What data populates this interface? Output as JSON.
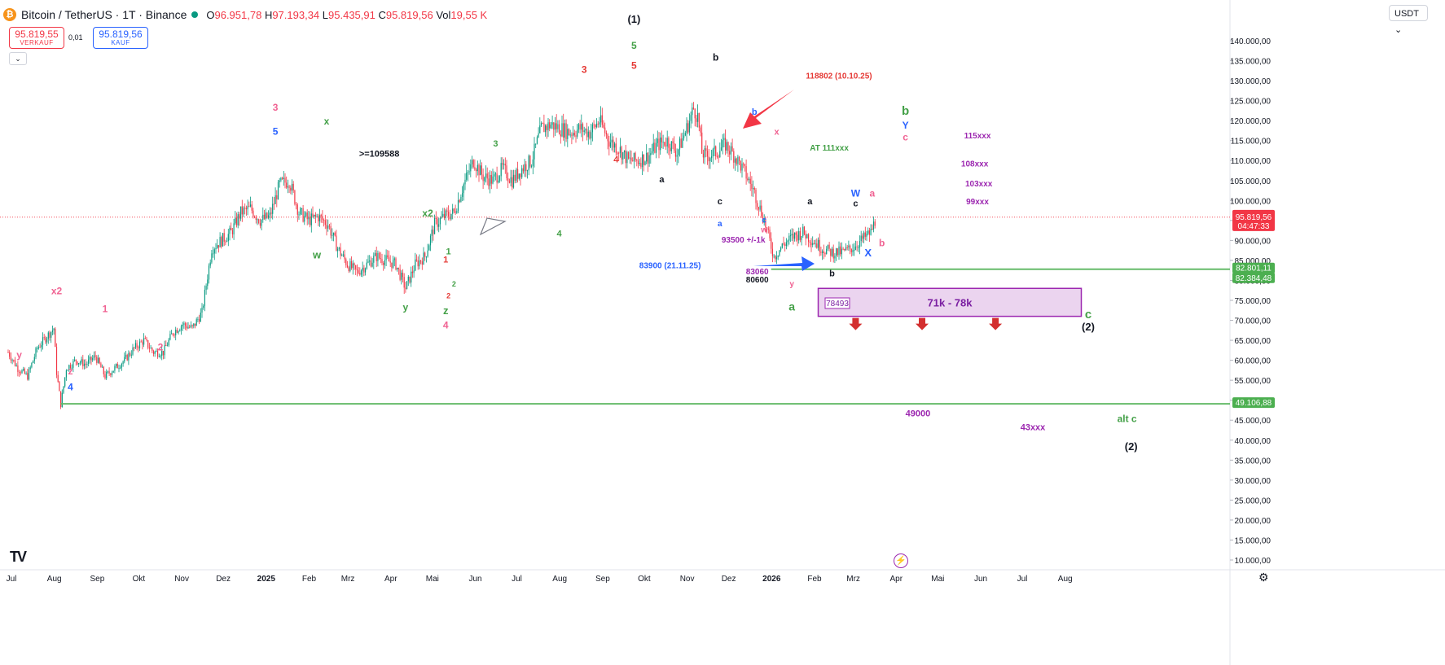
{
  "header": {
    "symbol": "Bitcoin / TetherUS · 1T · Binance",
    "coin_glyph": "₿",
    "ohlc": [
      {
        "k": "O",
        "v": "96.951,78"
      },
      {
        "k": "H",
        "v": "97.193,34"
      },
      {
        "k": "L",
        "v": "95.435,91"
      },
      {
        "k": "C",
        "v": "95.819,56"
      },
      {
        "k": "Vol",
        "v": "19,55 K"
      }
    ]
  },
  "trade": {
    "sell_price": "95.819,55",
    "sell_label": "VERKAUF",
    "spread": "0,01",
    "buy_price": "95.819,56",
    "buy_label": "KAUF"
  },
  "currency_button": "USDT",
  "colors": {
    "up": "#089981",
    "down": "#f23645",
    "green_line": "#66bb6a",
    "purple": "#9c27b0"
  },
  "chart_data": {
    "type": "candlestick",
    "y_ticks": [
      "10.000,00",
      "15.000,00",
      "20.000,00",
      "25.000,00",
      "30.000,00",
      "35.000,00",
      "40.000,00",
      "45.000,00",
      "50.000,00",
      "55.000,00",
      "60.000,00",
      "65.000,00",
      "70.000,00",
      "75.000,00",
      "80.000,00",
      "85.000,00",
      "90.000,00",
      "95.000,00",
      "100.000,00",
      "105.000,00",
      "110.000,00",
      "115.000,00",
      "120.000,00",
      "125.000,00",
      "130.000,00",
      "135.000,00",
      "140.000,00"
    ],
    "x_ticks": [
      "Jul",
      "Aug",
      "Sep",
      "Okt",
      "Nov",
      "Dez",
      "2025",
      "Feb",
      "Mrz",
      "Apr",
      "Mai",
      "Jun",
      "Jul",
      "Aug",
      "Sep",
      "Okt",
      "Nov",
      "Dez",
      "2026",
      "Feb",
      "Mrz",
      "Apr",
      "Mai",
      "Jun",
      "Jul",
      "Aug"
    ],
    "bold_x_ticks": [
      "2025",
      "2026"
    ],
    "series": [
      [
        0,
        62000
      ],
      [
        7,
        58000
      ],
      [
        14,
        56000
      ],
      [
        21,
        63000
      ],
      [
        28,
        66000
      ],
      [
        33,
        68000
      ],
      [
        35,
        57000
      ],
      [
        38,
        49000
      ],
      [
        42,
        58000
      ],
      [
        49,
        60000
      ],
      [
        56,
        59000
      ],
      [
        63,
        61000
      ],
      [
        70,
        56000
      ],
      [
        77,
        58000
      ],
      [
        84,
        60000
      ],
      [
        91,
        63000
      ],
      [
        98,
        65000
      ],
      [
        105,
        62000
      ],
      [
        112,
        62000
      ],
      [
        119,
        67000
      ],
      [
        126,
        69000
      ],
      [
        133,
        68000
      ],
      [
        140,
        72000
      ],
      [
        147,
        88000
      ],
      [
        154,
        90000
      ],
      [
        161,
        92000
      ],
      [
        168,
        97000
      ],
      [
        175,
        98000
      ],
      [
        182,
        95000
      ],
      [
        189,
        96000
      ],
      [
        196,
        104000
      ],
      [
        203,
        105000
      ],
      [
        210,
        97000
      ],
      [
        217,
        95000
      ],
      [
        224,
        96000
      ],
      [
        231,
        94000
      ],
      [
        238,
        88000
      ],
      [
        245,
        84000
      ],
      [
        252,
        82000
      ],
      [
        259,
        84000
      ],
      [
        266,
        86000
      ],
      [
        273,
        85000
      ],
      [
        280,
        84000
      ],
      [
        287,
        78000
      ],
      [
        294,
        84000
      ],
      [
        301,
        86000
      ],
      [
        308,
        94000
      ],
      [
        315,
        96000
      ],
      [
        322,
        97000
      ],
      [
        329,
        104000
      ],
      [
        336,
        110000
      ],
      [
        343,
        106000
      ],
      [
        350,
        105000
      ],
      [
        357,
        108000
      ],
      [
        364,
        105000
      ],
      [
        371,
        108000
      ],
      [
        378,
        110000
      ],
      [
        385,
        118000
      ],
      [
        392,
        119000
      ],
      [
        399,
        118000
      ],
      [
        406,
        117000
      ],
      [
        413,
        118000
      ],
      [
        420,
        117000
      ],
      [
        427,
        120000
      ],
      [
        434,
        115000
      ],
      [
        441,
        113000
      ],
      [
        448,
        110000
      ],
      [
        455,
        110000
      ],
      [
        462,
        111000
      ],
      [
        469,
        114000
      ],
      [
        476,
        115000
      ],
      [
        483,
        112000
      ],
      [
        490,
        118000
      ],
      [
        495,
        123000
      ],
      [
        498,
        121000
      ],
      [
        501,
        112000
      ],
      [
        504,
        111000
      ],
      [
        511,
        112000
      ],
      [
        518,
        114000
      ],
      [
        525,
        111000
      ],
      [
        532,
        107000
      ],
      [
        539,
        102000
      ],
      [
        546,
        95000
      ],
      [
        553,
        86000
      ],
      [
        560,
        89000
      ],
      [
        567,
        91000
      ],
      [
        574,
        92000
      ],
      [
        581,
        90000
      ],
      [
        588,
        88000
      ],
      [
        595,
        87000
      ],
      [
        602,
        87000
      ],
      [
        609,
        88000
      ],
      [
        616,
        90000
      ],
      [
        623,
        92000
      ],
      [
        627,
        95819
      ]
    ],
    "last_price": "95.819,56",
    "countdown": "04:47:33",
    "h_levels": [
      {
        "price": 82801.11,
        "label": "82.801,11",
        "from_day": 551
      },
      {
        "price": 82384.48,
        "label": "82.384,48",
        "from_day": 551
      },
      {
        "price": 49106.88,
        "label": "49.106,88",
        "from_day": 38
      }
    ],
    "zone": {
      "label": "71k - 78k",
      "from_day": 585,
      "to_day": 775,
      "top": 78000,
      "bottom": 71000,
      "arrows_days": [
        612,
        660,
        713
      ]
    },
    "annotations": [
      {
        "t": "(1)",
        "d": 452,
        "p": 144500,
        "c": "#131722",
        "b": 1,
        "s": 13
      },
      {
        "t": "5",
        "d": 452,
        "p": 138000,
        "c": "#43a047",
        "b": 1,
        "s": 12
      },
      {
        "t": "5",
        "d": 452,
        "p": 133000,
        "c": "#e53935",
        "b": 1,
        "s": 12
      },
      {
        "t": "3",
        "d": 416,
        "p": 132000,
        "c": "#e53935",
        "b": 1,
        "s": 12
      },
      {
        "t": "b",
        "d": 511,
        "p": 135000,
        "c": "#131722",
        "b": 1,
        "s": 12
      },
      {
        "t": "118802 (10.10.25)",
        "d": 600,
        "p": 130500,
        "c": "#e53935",
        "b": 1,
        "s": 10
      },
      {
        "t": "3",
        "d": 193,
        "p": 122500,
        "c": "#f06292",
        "b": 1,
        "s": 12
      },
      {
        "t": "5",
        "d": 193,
        "p": 116500,
        "c": "#2962ff",
        "b": 1,
        "s": 12
      },
      {
        "t": "x",
        "d": 230,
        "p": 119000,
        "c": "#43a047",
        "b": 1,
        "s": 12
      },
      {
        "t": ">=109588",
        "d": 268,
        "p": 111000,
        "c": "#131722",
        "b": 1,
        "s": 11
      },
      {
        "t": "3",
        "d": 352,
        "p": 113500,
        "c": "#43a047",
        "b": 1,
        "s": 11
      },
      {
        "t": "4",
        "d": 439,
        "p": 109500,
        "c": "#e53935",
        "b": 1,
        "s": 11
      },
      {
        "t": "a",
        "d": 472,
        "p": 104500,
        "c": "#131722",
        "b": 1,
        "s": 11
      },
      {
        "t": "b",
        "d": 539,
        "p": 121500,
        "c": "#2962ff",
        "b": 1,
        "s": 11
      },
      {
        "t": "x",
        "d": 555,
        "p": 116500,
        "c": "#f06292",
        "b": 1,
        "s": 11
      },
      {
        "t": "b",
        "d": 648,
        "p": 121500,
        "c": "#43a047",
        "b": 1,
        "s": 15
      },
      {
        "t": "Y",
        "d": 648,
        "p": 118000,
        "c": "#2962ff",
        "b": 1,
        "s": 12
      },
      {
        "t": "c",
        "d": 648,
        "p": 115000,
        "c": "#f06292",
        "b": 1,
        "s": 12
      },
      {
        "t": "AT 111xxx",
        "d": 593,
        "p": 112500,
        "c": "#43a047",
        "b": 1,
        "s": 10
      },
      {
        "t": "115xxx",
        "d": 700,
        "p": 115500,
        "c": "#9c27b0",
        "b": 1,
        "s": 10
      },
      {
        "t": "108xxx",
        "d": 698,
        "p": 108500,
        "c": "#9c27b0",
        "b": 1,
        "s": 10
      },
      {
        "t": "103xxx",
        "d": 701,
        "p": 103500,
        "c": "#9c27b0",
        "b": 1,
        "s": 10
      },
      {
        "t": "99xxx",
        "d": 700,
        "p": 99000,
        "c": "#9c27b0",
        "b": 1,
        "s": 10
      },
      {
        "t": "W",
        "d": 612,
        "p": 101000,
        "c": "#2962ff",
        "b": 1,
        "s": 12
      },
      {
        "t": "a",
        "d": 624,
        "p": 101000,
        "c": "#f06292",
        "b": 1,
        "s": 12
      },
      {
        "t": "c",
        "d": 514,
        "p": 99000,
        "c": "#131722",
        "b": 1,
        "s": 11
      },
      {
        "t": "a",
        "d": 579,
        "p": 99000,
        "c": "#131722",
        "b": 1,
        "s": 11
      },
      {
        "t": "c",
        "d": 612,
        "p": 98500,
        "c": "#131722",
        "b": 1,
        "s": 11
      },
      {
        "t": "x2",
        "d": 303,
        "p": 96000,
        "c": "#43a047",
        "b": 1,
        "s": 12
      },
      {
        "t": "a",
        "d": 514,
        "p": 93500,
        "c": "#2962ff",
        "b": 1,
        "s": 10
      },
      {
        "t": "c",
        "d": 546,
        "p": 94500,
        "c": "#2962ff",
        "b": 1,
        "s": 10
      },
      {
        "t": "w",
        "d": 546,
        "p": 92000,
        "c": "#f06292",
        "b": 1,
        "s": 10
      },
      {
        "t": "93500 +/-1k",
        "d": 531,
        "p": 89500,
        "c": "#9c27b0",
        "b": 1,
        "s": 10
      },
      {
        "t": "b",
        "d": 631,
        "p": 88500,
        "c": "#f06292",
        "b": 1,
        "s": 12
      },
      {
        "t": "4",
        "d": 398,
        "p": 91000,
        "c": "#43a047",
        "b": 1,
        "s": 11
      },
      {
        "t": "w",
        "d": 223,
        "p": 85500,
        "c": "#43a047",
        "b": 1,
        "s": 13
      },
      {
        "t": "1",
        "d": 318,
        "p": 86500,
        "c": "#43a047",
        "b": 1,
        "s": 11
      },
      {
        "t": "1",
        "d": 316,
        "p": 84500,
        "c": "#e53935",
        "b": 1,
        "s": 11
      },
      {
        "t": "X",
        "d": 621,
        "p": 86000,
        "c": "#2962ff",
        "b": 1,
        "s": 13
      },
      {
        "t": "83900 (21.11.25)",
        "d": 478,
        "p": 83000,
        "c": "#2962ff",
        "b": 1,
        "s": 10
      },
      {
        "t": "83060",
        "d": 541,
        "p": 81500,
        "c": "#9c27b0",
        "b": 1,
        "s": 10
      },
      {
        "t": "80600",
        "d": 541,
        "p": 79500,
        "c": "#131722",
        "b": 1,
        "s": 10
      },
      {
        "t": "b",
        "d": 595,
        "p": 81000,
        "c": "#131722",
        "b": 1,
        "s": 11
      },
      {
        "t": "y",
        "d": 566,
        "p": 78500,
        "c": "#f06292",
        "b": 1,
        "s": 10
      },
      {
        "t": "2",
        "d": 322,
        "p": 78500,
        "c": "#43a047",
        "b": 1,
        "s": 9
      },
      {
        "t": "2",
        "d": 318,
        "p": 75500,
        "c": "#e53935",
        "b": 1,
        "s": 9
      },
      {
        "t": "x2",
        "d": 35,
        "p": 76500,
        "c": "#f06292",
        "b": 1,
        "s": 12
      },
      {
        "t": "y",
        "d": 287,
        "p": 72500,
        "c": "#43a047",
        "b": 1,
        "s": 12
      },
      {
        "t": "z",
        "d": 316,
        "p": 71500,
        "c": "#43a047",
        "b": 1,
        "s": 13
      },
      {
        "t": "a",
        "d": 566,
        "p": 72500,
        "c": "#43a047",
        "b": 1,
        "s": 14
      },
      {
        "t": "1",
        "d": 70,
        "p": 72000,
        "c": "#f06292",
        "b": 1,
        "s": 12
      },
      {
        "t": "c",
        "d": 780,
        "p": 70500,
        "c": "#43a047",
        "b": 1,
        "s": 15
      },
      {
        "t": "4",
        "d": 316,
        "p": 68000,
        "c": "#f06292",
        "b": 1,
        "s": 12
      },
      {
        "t": "(2)",
        "d": 780,
        "p": 67500,
        "c": "#131722",
        "b": 1,
        "s": 13
      },
      {
        "t": "2",
        "d": 110,
        "p": 62500,
        "c": "#f06292",
        "b": 1,
        "s": 12
      },
      {
        "t": "y",
        "d": 8,
        "p": 60500,
        "c": "#f06292",
        "b": 1,
        "s": 12
      },
      {
        "t": "z",
        "d": 45,
        "p": 56500,
        "c": "#f06292",
        "b": 1,
        "s": 12
      },
      {
        "t": "4",
        "d": 45,
        "p": 52500,
        "c": "#2962ff",
        "b": 1,
        "s": 12
      },
      {
        "t": "49000",
        "d": 657,
        "p": 46000,
        "c": "#9c27b0",
        "b": 1,
        "s": 11
      },
      {
        "t": "alt c",
        "d": 808,
        "p": 44500,
        "c": "#43a047",
        "b": 1,
        "s": 12
      },
      {
        "t": "43xxx",
        "d": 740,
        "p": 42500,
        "c": "#9c27b0",
        "b": 1,
        "s": 11
      },
      {
        "t": "(2)",
        "d": 811,
        "p": 37500,
        "c": "#131722",
        "b": 1,
        "s": 13
      }
    ],
    "price_label_78493": "78493"
  }
}
